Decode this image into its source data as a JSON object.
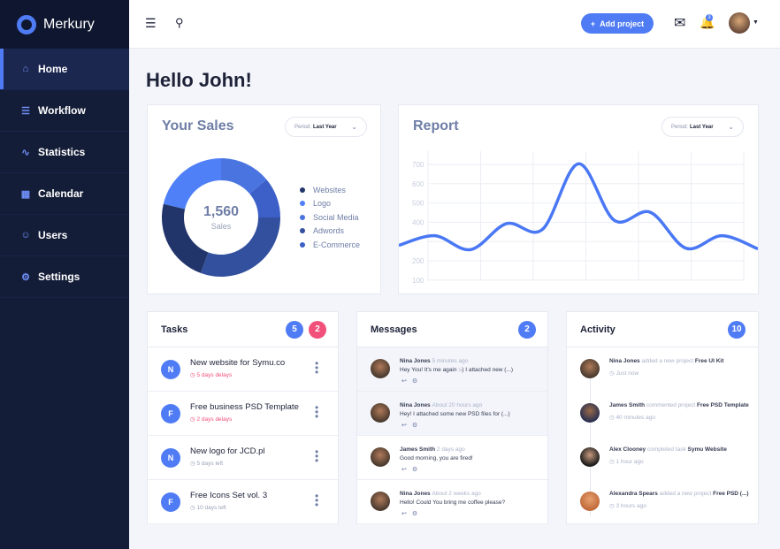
{
  "app": {
    "name": "Merkury"
  },
  "sidebar": {
    "items": [
      {
        "label": "Home",
        "icon": "home-icon",
        "active": true
      },
      {
        "label": "Workflow",
        "icon": "workflow-icon"
      },
      {
        "label": "Statistics",
        "icon": "statistics-icon"
      },
      {
        "label": "Calendar",
        "icon": "calendar-icon"
      },
      {
        "label": "Users",
        "icon": "user-icon"
      },
      {
        "label": "Settings",
        "icon": "settings-icon"
      }
    ]
  },
  "header": {
    "add_project": "Add project",
    "notifications": "3"
  },
  "greeting": "Hello John!",
  "colors": {
    "accent": "#4f7cf5",
    "danger": "#f0507a",
    "sidebar": "#141d38"
  },
  "sales": {
    "title": "Your Sales",
    "period_label": "Period:",
    "period_value": "Last Year",
    "total": "1,560",
    "total_label": "Sales"
  },
  "report": {
    "title": "Report",
    "period_label": "Period:",
    "period_value": "Last Year"
  },
  "chart_data": [
    {
      "type": "pie",
      "donut": true,
      "title": "Your Sales",
      "center_value": 1560,
      "center_label": "Sales",
      "legend_position": "right",
      "slices": [
        {
          "name": "Websites",
          "value": 360,
          "color": "#22356b"
        },
        {
          "name": "Logo",
          "value": 333,
          "color": "#4f80f7"
        },
        {
          "name": "Social Media",
          "value": 217,
          "color": "#4a74e0"
        },
        {
          "name": "Adwords",
          "value": 477,
          "color": "#32509e"
        },
        {
          "name": "E-Commerce",
          "value": 173,
          "color": "#3c5fc8"
        }
      ]
    },
    {
      "type": "line",
      "title": "Report",
      "smooth": true,
      "grid": true,
      "ylim": [
        100,
        750
      ],
      "yticks": [
        100,
        200,
        300,
        400,
        500,
        600,
        700
      ],
      "ytick_labels": [
        "100",
        "200",
        "",
        "400",
        "500",
        "600",
        "700"
      ],
      "values": [
        280,
        330,
        258,
        393,
        363,
        703,
        410,
        452,
        265,
        330,
        262
      ],
      "color": "#4a78f5"
    }
  ],
  "tasks": {
    "title": "Tasks",
    "count": "5",
    "urgent": "2",
    "items": [
      {
        "initial": "N",
        "title": "New website for Symu.co",
        "status": "5 days delays",
        "late": true
      },
      {
        "initial": "F",
        "title": "Free business PSD Template",
        "status": "2 days delays",
        "late": true
      },
      {
        "initial": "N",
        "title": "New logo for JCD.pl",
        "status": "5 days left",
        "late": false
      },
      {
        "initial": "F",
        "title": "Free Icons Set vol. 3",
        "status": "10 days left",
        "late": false
      }
    ]
  },
  "messages": {
    "title": "Messages",
    "count": "2",
    "items": [
      {
        "name": "Nina Jones",
        "time": "5 minutes ago",
        "text": "Hey You! It's me again :-) I attached new (...)",
        "unread": true
      },
      {
        "name": "Nina Jones",
        "time": "About 20 hours ago",
        "text": "Hey! I attached some new PSD files for (...)",
        "unread": true
      },
      {
        "name": "James Smith",
        "time": "2 days ago",
        "text": "Good morning, you are fired!",
        "unread": false
      },
      {
        "name": "Nina Jones",
        "time": "About 2 weeks ago",
        "text": "Hello! Could You bring me coffee please?",
        "unread": false
      }
    ]
  },
  "activity": {
    "title": "Activity",
    "count": "10",
    "items": [
      {
        "name": "Nina Jones",
        "action": "added a new project",
        "target": "Free UI Kit",
        "time": "Just now"
      },
      {
        "name": "James Smith",
        "action": "commented project",
        "target": "Free PSD Template",
        "time": "40 minutes ago"
      },
      {
        "name": "Alex Clooney",
        "action": "completed task",
        "target": "Symu Website",
        "time": "1 hour ago"
      },
      {
        "name": "Alexandra Spears",
        "action": "added a new project",
        "target": "Free PSD (...)",
        "time": "3 hours ago"
      }
    ]
  }
}
